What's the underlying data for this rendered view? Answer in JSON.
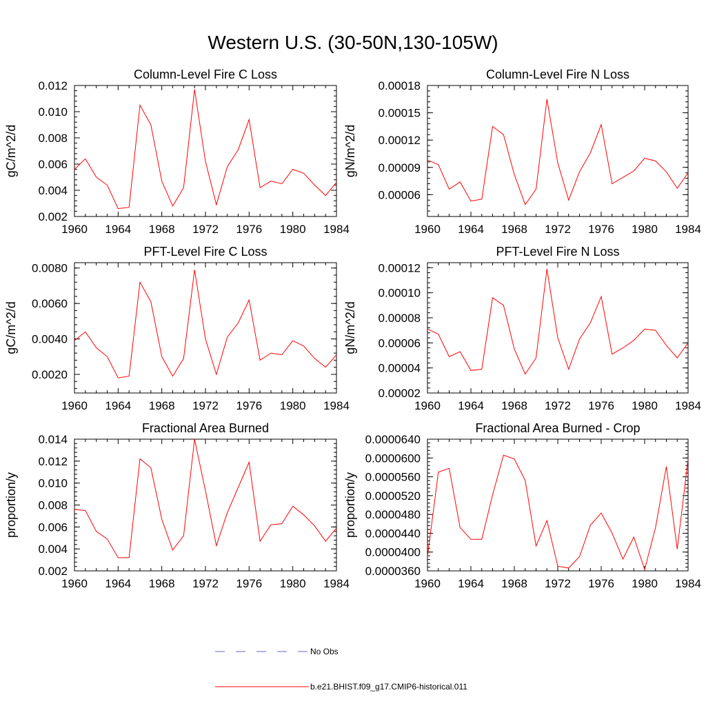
{
  "page": {
    "title": "Western U.S. (30-50N,130-105W)"
  },
  "legend": {
    "items": [
      {
        "label": "No Obs",
        "color": "#6666cc",
        "style": "dashed"
      },
      {
        "label": "b.e21.BHIST.f09_g17.CMIP6-historical.011",
        "color": "#ff0000",
        "style": "solid"
      }
    ]
  },
  "chart_data": [
    {
      "type": "line",
      "title": "Column-Level Fire C Loss",
      "xlabel": "",
      "ylabel": "gC/m^2/d",
      "xlim": [
        1960,
        1984
      ],
      "ylim": [
        0.002,
        0.012
      ],
      "x_ticks": [
        "1960",
        "1964",
        "1968",
        "1972",
        "1976",
        "1980",
        "1984"
      ],
      "y_ticks": [
        "0.002",
        "0.004",
        "0.006",
        "0.008",
        "0.010",
        "0.012"
      ],
      "series": [
        {
          "name": "b.e21.BHIST.f09_g17.CMIP6-historical.011",
          "color": "#ff0000",
          "x": [
            1960,
            1961,
            1962,
            1963,
            1964,
            1965,
            1966,
            1967,
            1968,
            1969,
            1970,
            1971,
            1972,
            1973,
            1974,
            1975,
            1976,
            1977,
            1978,
            1979,
            1980,
            1981,
            1982,
            1983,
            1984
          ],
          "values": [
            0.0056,
            0.0064,
            0.005,
            0.0044,
            0.0026,
            0.0027,
            0.0105,
            0.009,
            0.0047,
            0.0028,
            0.0042,
            0.0117,
            0.0062,
            0.0029,
            0.0058,
            0.0071,
            0.0094,
            0.0042,
            0.0047,
            0.0045,
            0.0056,
            0.0053,
            0.0044,
            0.0036,
            0.0046
          ]
        }
      ]
    },
    {
      "type": "line",
      "title": "Column-Level Fire N Loss",
      "xlabel": "",
      "ylabel": "gN/m^2/d",
      "xlim": [
        1960,
        1984
      ],
      "ylim": [
        3.6e-05,
        0.00018
      ],
      "x_ticks": [
        "1960",
        "1964",
        "1968",
        "1972",
        "1976",
        "1980",
        "1984"
      ],
      "y_ticks": [
        "0.00006",
        "0.00009",
        "0.00012",
        "0.00015",
        "0.00018"
      ],
      "series": [
        {
          "name": "b.e21.BHIST.f09_g17.CMIP6-historical.011",
          "color": "#ff0000",
          "x": [
            1960,
            1961,
            1962,
            1963,
            1964,
            1965,
            1966,
            1967,
            1968,
            1969,
            1970,
            1971,
            1972,
            1973,
            1974,
            1975,
            1976,
            1977,
            1978,
            1979,
            1980,
            1981,
            1982,
            1983,
            1984
          ],
          "values": [
            9.8e-05,
            9.3e-05,
            6.6e-05,
            7.4e-05,
            5.3e-05,
            5.5e-05,
            0.000135,
            0.000126,
            8.2e-05,
            4.9e-05,
            6.6e-05,
            0.000165,
            9.5e-05,
            5.4e-05,
            8.5e-05,
            0.000106,
            0.000137,
            7.2e-05,
            7.9e-05,
            8.6e-05,
            0.0001,
            9.7e-05,
            8.5e-05,
            6.7e-05,
            8.4e-05
          ]
        }
      ]
    },
    {
      "type": "line",
      "title": "PFT-Level Fire C Loss",
      "xlabel": "",
      "ylabel": "gC/m^2/d",
      "xlim": [
        1960,
        1984
      ],
      "ylim": [
        0.00095,
        0.0083
      ],
      "x_ticks": [
        "1960",
        "1964",
        "1968",
        "1972",
        "1976",
        "1980",
        "1984"
      ],
      "y_ticks": [
        "0.0020",
        "0.0040",
        "0.0060",
        "0.0080"
      ],
      "series": [
        {
          "name": "b.e21.BHIST.f09_g17.CMIP6-historical.011",
          "color": "#ff0000",
          "x": [
            1960,
            1961,
            1962,
            1963,
            1964,
            1965,
            1966,
            1967,
            1968,
            1969,
            1970,
            1971,
            1972,
            1973,
            1974,
            1975,
            1976,
            1977,
            1978,
            1979,
            1980,
            1981,
            1982,
            1983,
            1984
          ],
          "values": [
            0.0039,
            0.0044,
            0.0035,
            0.003,
            0.0018,
            0.0019,
            0.0072,
            0.0061,
            0.003,
            0.0019,
            0.0029,
            0.0079,
            0.004,
            0.002,
            0.0041,
            0.0049,
            0.0062,
            0.0028,
            0.0032,
            0.0031,
            0.0039,
            0.0036,
            0.0029,
            0.0024,
            0.0031
          ]
        }
      ]
    },
    {
      "type": "line",
      "title": "PFT-Level Fire N Loss",
      "xlabel": "",
      "ylabel": "gN/m^2/d",
      "xlim": [
        1960,
        1984
      ],
      "ylim": [
        2e-05,
        0.000124
      ],
      "x_ticks": [
        "1960",
        "1964",
        "1968",
        "1972",
        "1976",
        "1980",
        "1984"
      ],
      "y_ticks": [
        "0.00002",
        "0.00004",
        "0.00006",
        "0.00008",
        "0.00010",
        "0.00012"
      ],
      "series": [
        {
          "name": "b.e21.BHIST.f09_g17.CMIP6-historical.011",
          "color": "#ff0000",
          "x": [
            1960,
            1961,
            1962,
            1963,
            1964,
            1965,
            1966,
            1967,
            1968,
            1969,
            1970,
            1971,
            1972,
            1973,
            1974,
            1975,
            1976,
            1977,
            1978,
            1979,
            1980,
            1981,
            1982,
            1983,
            1984
          ],
          "values": [
            7.1e-05,
            6.7e-05,
            4.9e-05,
            5.3e-05,
            3.8e-05,
            3.9e-05,
            9.6e-05,
            9e-05,
            5.5e-05,
            3.5e-05,
            4.8e-05,
            0.000119,
            6.4e-05,
            3.9e-05,
            6.3e-05,
            7.6e-05,
            9.7e-05,
            5.1e-05,
            5.6e-05,
            6.2e-05,
            7.1e-05,
            7e-05,
            5.8e-05,
            4.8e-05,
            6e-05
          ]
        }
      ]
    },
    {
      "type": "line",
      "title": "Fractional Area Burned",
      "xlabel": "",
      "ylabel": "proportion/y",
      "xlim": [
        1960,
        1984
      ],
      "ylim": [
        0.002,
        0.014
      ],
      "x_ticks": [
        "1960",
        "1964",
        "1968",
        "1972",
        "1976",
        "1980",
        "1984"
      ],
      "y_ticks": [
        "0.002",
        "0.004",
        "0.006",
        "0.008",
        "0.010",
        "0.012",
        "0.014"
      ],
      "series": [
        {
          "name": "b.e21.BHIST.f09_g17.CMIP6-historical.011",
          "color": "#ff0000",
          "x": [
            1960,
            1961,
            1962,
            1963,
            1964,
            1965,
            1966,
            1967,
            1968,
            1969,
            1970,
            1971,
            1972,
            1973,
            1974,
            1975,
            1976,
            1977,
            1978,
            1979,
            1980,
            1981,
            1982,
            1983,
            1984
          ],
          "values": [
            0.0076,
            0.0075,
            0.0056,
            0.0049,
            0.0032,
            0.0032,
            0.0122,
            0.0114,
            0.0067,
            0.0039,
            0.0052,
            0.014,
            0.0093,
            0.0043,
            0.0073,
            0.0096,
            0.0119,
            0.0047,
            0.0062,
            0.0063,
            0.0079,
            0.0071,
            0.0061,
            0.0047,
            0.0059
          ]
        }
      ]
    },
    {
      "type": "line",
      "title": "Fractional Area Burned - Crop",
      "xlabel": "",
      "ylabel": "proportion/y",
      "xlim": [
        1960,
        1984
      ],
      "ylim": [
        3.6e-05,
        6.4e-05
      ],
      "x_ticks": [
        "1960",
        "1964",
        "1968",
        "1972",
        "1976",
        "1980",
        "1984"
      ],
      "y_ticks": [
        "0.0000360",
        "0.0000400",
        "0.0000440",
        "0.0000480",
        "0.0000520",
        "0.0000560",
        "0.0000600",
        "0.0000640"
      ],
      "series": [
        {
          "name": "b.e21.BHIST.f09_g17.CMIP6-historical.011",
          "color": "#ff0000",
          "x": [
            1960,
            1961,
            1962,
            1963,
            1964,
            1965,
            1966,
            1967,
            1968,
            1969,
            1970,
            1971,
            1972,
            1973,
            1974,
            1975,
            1976,
            1977,
            1978,
            1979,
            1980,
            1981,
            1982,
            1983,
            1984
          ],
          "values": [
            3.9e-05,
            5.7e-05,
            5.78e-05,
            4.52e-05,
            4.27e-05,
            4.27e-05,
            5.22e-05,
            6.06e-05,
            5.98e-05,
            5.52e-05,
            4.13e-05,
            4.67e-05,
            3.7e-05,
            3.66e-05,
            3.9e-05,
            4.57e-05,
            4.83e-05,
            4.4e-05,
            3.85e-05,
            4.32e-05,
            3.63e-05,
            4.52e-05,
            5.82e-05,
            4.06e-05,
            5.98e-05
          ]
        }
      ]
    }
  ]
}
